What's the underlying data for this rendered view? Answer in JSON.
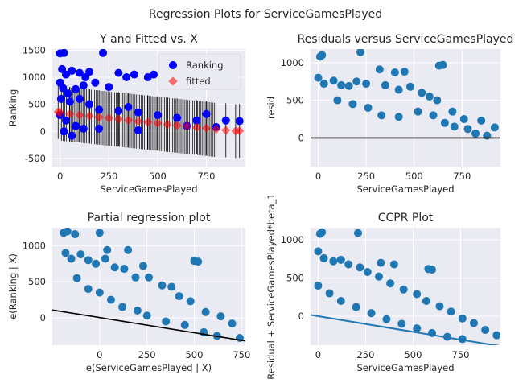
{
  "figure": {
    "title": "Regression Plots for ServiceGamesPlayed",
    "background": "#ffffff",
    "axes_background": "#eaeaf2",
    "grid_color": "#ffffff"
  },
  "chart_data": [
    {
      "type": "scatter",
      "title": "Y and Fitted vs. X",
      "xlabel": "ServiceGamesPlayed",
      "ylabel": "Ranking",
      "xlim": [
        -40,
        950
      ],
      "ylim": [
        -650,
        1520
      ],
      "xticks": [
        0,
        250,
        500,
        750
      ],
      "yticks": [
        -500,
        0,
        500,
        1000,
        1500
      ],
      "grid": true,
      "legend_position": "top-right",
      "series": [
        {
          "name": "Ranking",
          "color": "#0000ff",
          "marker": "circle",
          "points": [
            [
              0,
              1440
            ],
            [
              10,
              1150
            ],
            [
              20,
              1450
            ],
            [
              30,
              1050
            ],
            [
              60,
              1120
            ],
            [
              100,
              1080
            ],
            [
              130,
              1000
            ],
            [
              150,
              1100
            ],
            [
              220,
              1450
            ],
            [
              300,
              1080
            ],
            [
              340,
              1000
            ],
            [
              380,
              1050
            ],
            [
              450,
              1000
            ],
            [
              480,
              1050
            ],
            [
              0,
              900
            ],
            [
              15,
              800
            ],
            [
              40,
              700
            ],
            [
              80,
              780
            ],
            [
              120,
              850
            ],
            [
              180,
              900
            ],
            [
              250,
              820
            ],
            [
              5,
              600
            ],
            [
              50,
              550
            ],
            [
              100,
              600
            ],
            [
              150,
              500
            ],
            [
              200,
              400
            ],
            [
              300,
              380
            ],
            [
              350,
              450
            ],
            [
              400,
              350
            ],
            [
              500,
              300
            ],
            [
              600,
              250
            ],
            [
              700,
              200
            ],
            [
              750,
              320
            ],
            [
              850,
              200
            ],
            [
              920,
              190
            ],
            [
              0,
              300
            ],
            [
              30,
              200
            ],
            [
              80,
              100
            ],
            [
              120,
              50
            ],
            [
              20,
              0
            ],
            [
              60,
              -80
            ],
            [
              200,
              50
            ],
            [
              400,
              20
            ],
            [
              650,
              100
            ],
            [
              800,
              80
            ]
          ]
        },
        {
          "name": "fitted",
          "color": "#ff0000",
          "marker": "diamond",
          "points": [
            [
              -10,
              360
            ],
            [
              0,
              345
            ],
            [
              50,
              320
            ],
            [
              100,
              300
            ],
            [
              150,
              285
            ],
            [
              200,
              260
            ],
            [
              250,
              245
            ],
            [
              300,
              225
            ],
            [
              350,
              205
            ],
            [
              400,
              185
            ],
            [
              450,
              170
            ],
            [
              500,
              150
            ],
            [
              550,
              130
            ],
            [
              600,
              110
            ],
            [
              650,
              95
            ],
            [
              700,
              75
            ],
            [
              750,
              60
            ],
            [
              800,
              40
            ],
            [
              850,
              20
            ],
            [
              900,
              5
            ],
            [
              920,
              10
            ]
          ]
        }
      ],
      "fitted_line": {
        "slope": -0.38,
        "intercept": 330
      }
    },
    {
      "type": "scatter",
      "title": "Residuals versus ServiceGamesPlayed",
      "xlabel": "ServiceGamesPlayed",
      "ylabel": "resid",
      "xlim": [
        -40,
        950
      ],
      "ylim": [
        -380,
        1180
      ],
      "xticks": [
        0,
        250,
        500,
        750
      ],
      "yticks": [
        0,
        500,
        1000
      ],
      "grid": true,
      "series": [
        {
          "color": "#1f77b4",
          "points": [
            [
              10,
              1080
            ],
            [
              20,
              1100
            ],
            [
              220,
              1140
            ],
            [
              320,
              910
            ],
            [
              400,
              870
            ],
            [
              450,
              880
            ],
            [
              630,
              960
            ],
            [
              650,
              970
            ],
            [
              0,
              800
            ],
            [
              30,
              720
            ],
            [
              80,
              760
            ],
            [
              120,
              700
            ],
            [
              160,
              690
            ],
            [
              200,
              750
            ],
            [
              250,
              720
            ],
            [
              350,
              700
            ],
            [
              420,
              640
            ],
            [
              480,
              680
            ],
            [
              540,
              600
            ],
            [
              580,
              550
            ],
            [
              620,
              500
            ],
            [
              700,
              350
            ],
            [
              760,
              250
            ],
            [
              850,
              230
            ],
            [
              920,
              140
            ],
            [
              100,
              500
            ],
            [
              180,
              450
            ],
            [
              260,
              400
            ],
            [
              330,
              300
            ],
            [
              420,
              280
            ],
            [
              520,
              350
            ],
            [
              600,
              300
            ],
            [
              660,
              200
            ],
            [
              710,
              150
            ],
            [
              780,
              120
            ],
            [
              820,
              60
            ],
            [
              880,
              30
            ]
          ]
        }
      ],
      "zero_line": 0
    },
    {
      "type": "scatter",
      "title": "Partial regression plot",
      "xlabel": "e(ServiceGamesPlayed | X)",
      "ylabel": "e(Ranking | X)",
      "xlim": [
        -250,
        770
      ],
      "ylim": [
        -380,
        1250
      ],
      "xticks": [
        0,
        250,
        500,
        750
      ],
      "yticks": [
        0,
        500,
        1000
      ],
      "grid": true,
      "series": [
        {
          "color": "#1f77b4",
          "points": [
            [
              -190,
              1180
            ],
            [
              -170,
              1200
            ],
            [
              -130,
              1160
            ],
            [
              0,
              1180
            ],
            [
              40,
              940
            ],
            [
              150,
              940
            ],
            [
              230,
              720
            ],
            [
              500,
              790
            ],
            [
              520,
              780
            ],
            [
              -180,
              900
            ],
            [
              -150,
              820
            ],
            [
              -100,
              880
            ],
            [
              -60,
              800
            ],
            [
              -20,
              750
            ],
            [
              30,
              820
            ],
            [
              80,
              700
            ],
            [
              130,
              680
            ],
            [
              190,
              560
            ],
            [
              260,
              560
            ],
            [
              330,
              450
            ],
            [
              380,
              430
            ],
            [
              420,
              300
            ],
            [
              480,
              230
            ],
            [
              560,
              80
            ],
            [
              640,
              20
            ],
            [
              700,
              -80
            ],
            [
              -120,
              550
            ],
            [
              -60,
              400
            ],
            [
              0,
              350
            ],
            [
              60,
              250
            ],
            [
              120,
              150
            ],
            [
              200,
              100
            ],
            [
              250,
              30
            ],
            [
              350,
              -50
            ],
            [
              450,
              -100
            ],
            [
              550,
              -200
            ],
            [
              620,
              -250
            ],
            [
              740,
              -280
            ]
          ]
        }
      ],
      "fitted_line": {
        "slope": -0.42,
        "intercept": 3
      }
    },
    {
      "type": "scatter",
      "title": "CCPR Plot",
      "xlabel": "ServiceGamesPlayed",
      "ylabel": "Residual + ServiceGamesPlayed*beta_1",
      "xlim": [
        -40,
        960
      ],
      "ylim": [
        -380,
        1160
      ],
      "xticks": [
        0,
        250,
        500,
        750
      ],
      "yticks": [
        0,
        500,
        1000
      ],
      "grid": true,
      "series": [
        {
          "color": "#1f77b4",
          "points": [
            [
              10,
              1080
            ],
            [
              20,
              1100
            ],
            [
              210,
              1090
            ],
            [
              330,
              700
            ],
            [
              400,
              680
            ],
            [
              580,
              620
            ],
            [
              600,
              610
            ],
            [
              0,
              850
            ],
            [
              30,
              760
            ],
            [
              80,
              720
            ],
            [
              120,
              740
            ],
            [
              160,
              680
            ],
            [
              220,
              640
            ],
            [
              260,
              580
            ],
            [
              320,
              520
            ],
            [
              380,
              430
            ],
            [
              450,
              350
            ],
            [
              520,
              290
            ],
            [
              570,
              200
            ],
            [
              640,
              130
            ],
            [
              700,
              60
            ],
            [
              760,
              -30
            ],
            [
              820,
              -90
            ],
            [
              880,
              -180
            ],
            [
              940,
              -250
            ],
            [
              0,
              400
            ],
            [
              60,
              300
            ],
            [
              120,
              200
            ],
            [
              200,
              120
            ],
            [
              280,
              40
            ],
            [
              360,
              -40
            ],
            [
              440,
              -100
            ],
            [
              520,
              -160
            ],
            [
              600,
              -220
            ],
            [
              680,
              -270
            ],
            [
              760,
              -300
            ]
          ]
        }
      ],
      "component_line": {
        "slope": -0.41,
        "intercept": 0
      }
    }
  ]
}
